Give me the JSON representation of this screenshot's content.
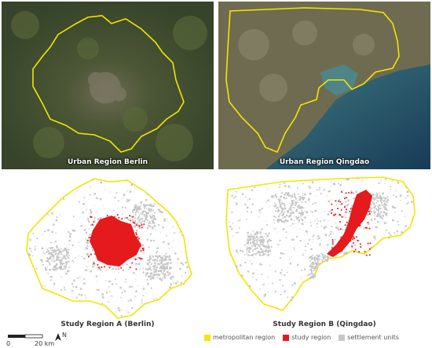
{
  "panels": {
    "sat_berlin": {
      "caption": "Urban Region Berlin"
    },
    "sat_qingdao": {
      "caption": "Urban Region Qingdao"
    },
    "map_berlin": {
      "caption": "Study Region A (Berlin)"
    },
    "map_qingdao": {
      "caption": "Study Region B (Qingdao)"
    }
  },
  "legend": {
    "items": [
      {
        "label": "metropolitan region",
        "color": "#f2e600"
      },
      {
        "label": "study region",
        "color": "#e41a1c"
      },
      {
        "label": "settlement units",
        "color": "#c6c6c6"
      }
    ]
  },
  "scalebar": {
    "start": "0",
    "end": "20 km"
  },
  "north_arrow": {
    "label": "N"
  },
  "colors": {
    "boundary": "#f2e600",
    "study": "#e41a1c",
    "settlement": "#c6c6c6"
  }
}
